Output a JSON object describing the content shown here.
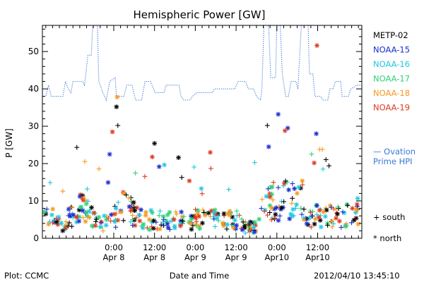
{
  "chart_data": {
    "type": "scatter",
    "title": "Hemispheric Power [GW]",
    "xlabel": "Date and Time",
    "ylabel": "P [GW]",
    "ylim": [
      0,
      57
    ],
    "xlim_hours": [
      -10.5,
      36.5
    ],
    "y_ticks": [
      0,
      10,
      20,
      30,
      40,
      50
    ],
    "x_ticks": [
      {
        "h": 0,
        "time": "0:00",
        "date": "Apr 8"
      },
      {
        "h": 6,
        "time": "12:00",
        "date": "Apr 8"
      },
      {
        "h": 12,
        "time": "0:00",
        "date": "Apr 9"
      },
      {
        "h": 18,
        "time": "12:00",
        "date": "Apr 9"
      },
      {
        "h": 24,
        "time": "0:00",
        "date": "Apr10"
      },
      {
        "h": 30,
        "time": "12:00",
        "date": "Apr10"
      }
    ],
    "series": [
      {
        "name": "METP-02",
        "color": "#000000"
      },
      {
        "name": "NOAA-15",
        "color": "#1a2fd0"
      },
      {
        "name": "NOAA-16",
        "color": "#22c8e0"
      },
      {
        "name": "NOAA-17",
        "color": "#2ed27a"
      },
      {
        "name": "NOAA-18",
        "color": "#f59a1e"
      },
      {
        "name": "NOAA-19",
        "color": "#e03a1e"
      }
    ],
    "ovation": {
      "label": "— Ovation Prime HPI",
      "color": "#3a78d8",
      "points": [
        [
          -10.5,
          38
        ],
        [
          -10,
          38
        ],
        [
          -9.6,
          41
        ],
        [
          -9.2,
          38
        ],
        [
          -7.5,
          38
        ],
        [
          -7.1,
          42
        ],
        [
          -6.7,
          40
        ],
        [
          -6.3,
          39
        ],
        [
          -6,
          42
        ],
        [
          -4.6,
          42
        ],
        [
          -4.3,
          41
        ],
        [
          -3.8,
          49
        ],
        [
          -3.3,
          49
        ],
        [
          -3.1,
          57
        ],
        [
          -2.4,
          57
        ],
        [
          -2.2,
          42
        ],
        [
          -1.6,
          39
        ],
        [
          -1.1,
          37
        ],
        [
          -0.6,
          42
        ],
        [
          0.2,
          43
        ],
        [
          0.4,
          38
        ],
        [
          1.5,
          38
        ],
        [
          1.9,
          41
        ],
        [
          2.7,
          41
        ],
        [
          3.2,
          37
        ],
        [
          4.1,
          37
        ],
        [
          4.6,
          42
        ],
        [
          5.4,
          42
        ],
        [
          6.1,
          39
        ],
        [
          7.4,
          39
        ],
        [
          7.7,
          41
        ],
        [
          9.6,
          41
        ],
        [
          9.9,
          38
        ],
        [
          10.3,
          37
        ],
        [
          11.2,
          37
        ],
        [
          11.6,
          38
        ],
        [
          12.2,
          39
        ],
        [
          14.5,
          39
        ],
        [
          14.8,
          40
        ],
        [
          16.6,
          40
        ],
        [
          17.8,
          40
        ],
        [
          18.3,
          42
        ],
        [
          19.4,
          42
        ],
        [
          19.8,
          40
        ],
        [
          20.6,
          40
        ],
        [
          21,
          38
        ],
        [
          21.6,
          37
        ],
        [
          21.8,
          40
        ],
        [
          22.1,
          57
        ],
        [
          22.8,
          57
        ],
        [
          23.1,
          43
        ],
        [
          23.8,
          43
        ],
        [
          24,
          57
        ],
        [
          24.5,
          57
        ],
        [
          24.8,
          44
        ],
        [
          25.3,
          38
        ],
        [
          25.7,
          38
        ],
        [
          26.1,
          42
        ],
        [
          26.8,
          42
        ],
        [
          27.1,
          40
        ],
        [
          27.6,
          57
        ],
        [
          28.6,
          57
        ],
        [
          28.8,
          44
        ],
        [
          29.3,
          44
        ],
        [
          29.6,
          38
        ],
        [
          30.4,
          38
        ],
        [
          30.8,
          37
        ],
        [
          31.5,
          37
        ],
        [
          31.8,
          40
        ],
        [
          32.3,
          40
        ],
        [
          32.6,
          42
        ],
        [
          33.4,
          42
        ],
        [
          33.6,
          38
        ],
        [
          34.5,
          38
        ],
        [
          34.9,
          40
        ],
        [
          35.8,
          41
        ],
        [
          36.5,
          41
        ]
      ]
    },
    "legend_markers": [
      {
        "symbol": "+",
        "label": "south"
      },
      {
        "symbol": "*",
        "label": "north"
      }
    ]
  },
  "footer": {
    "plot_label": "Plot: CCMC",
    "timestamp": "2012/04/10 13:45:10"
  }
}
